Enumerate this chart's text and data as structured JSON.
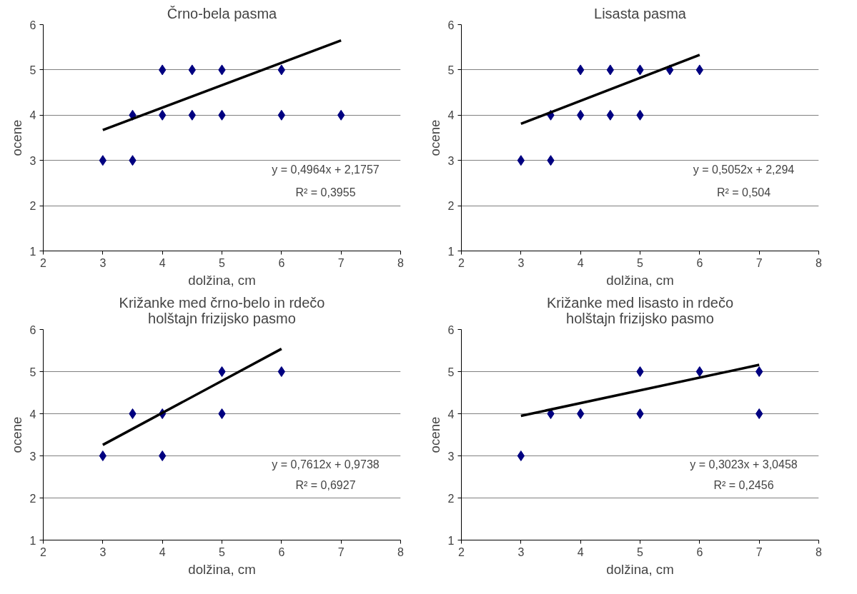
{
  "chart_data": [
    {
      "type": "scatter",
      "title": "Črno-bela pasma",
      "xlabel": "dolžina, cm",
      "ylabel": "ocene",
      "xlim": [
        2,
        8
      ],
      "ylim": [
        1,
        6
      ],
      "xticks": [
        2,
        3,
        4,
        5,
        6,
        7,
        8
      ],
      "yticks": [
        1,
        2,
        3,
        4,
        5,
        6
      ],
      "grid": "y",
      "marker": "diamond",
      "annotations": [
        "y = 0,4964x + 2,1757",
        "R² = 0,3955"
      ],
      "series": [
        {
          "color": "#000080",
          "x": [
            3,
            3.5,
            3.5,
            4,
            4,
            4.5,
            4.5,
            5,
            5,
            6,
            6,
            7
          ],
          "values": [
            3,
            3,
            4,
            4,
            5,
            4,
            5,
            4,
            5,
            4,
            5,
            4
          ]
        },
        {
          "type": "line",
          "color": "#000000",
          "marker": "none",
          "x": [
            3,
            7
          ],
          "values": [
            3.67,
            5.65
          ]
        }
      ]
    },
    {
      "type": "scatter",
      "title": "Lisasta pasma",
      "xlabel": "dolžina, cm",
      "ylabel": "ocene",
      "xlim": [
        2,
        8
      ],
      "ylim": [
        1,
        6
      ],
      "xticks": [
        2,
        3,
        4,
        5,
        6,
        7,
        8
      ],
      "yticks": [
        1,
        2,
        3,
        4,
        5,
        6
      ],
      "grid": "y",
      "marker": "diamond",
      "annotations": [
        "y = 0,5052x + 2,294",
        "R² = 0,504"
      ],
      "series": [
        {
          "color": "#000080",
          "x": [
            3,
            3.5,
            3.5,
            4,
            4,
            4.5,
            4.5,
            5,
            5,
            5.5,
            6
          ],
          "values": [
            3,
            3,
            4,
            4,
            5,
            4,
            5,
            4,
            5,
            5,
            5
          ]
        },
        {
          "type": "line",
          "color": "#000000",
          "marker": "none",
          "x": [
            3,
            6
          ],
          "values": [
            3.81,
            5.33
          ]
        }
      ]
    },
    {
      "type": "scatter",
      "title": "Križanke med črno-belo in rdečo holštajn frizijsko pasmo",
      "xlabel": "dolžina, cm",
      "ylabel": "ocene",
      "xlim": [
        2,
        8
      ],
      "ylim": [
        1,
        6
      ],
      "xticks": [
        2,
        3,
        4,
        5,
        6,
        7,
        8
      ],
      "yticks": [
        1,
        2,
        3,
        4,
        5,
        6
      ],
      "grid": "y",
      "marker": "diamond",
      "annotations": [
        "y = 0,7612x + 0,9738",
        "R² = 0,6927"
      ],
      "series": [
        {
          "color": "#000080",
          "x": [
            3,
            3.5,
            4,
            4,
            5,
            5,
            6
          ],
          "values": [
            3,
            4,
            3,
            4,
            4,
            5,
            5
          ]
        },
        {
          "type": "line",
          "color": "#000000",
          "marker": "none",
          "x": [
            3,
            6
          ],
          "values": [
            3.26,
            5.54
          ]
        }
      ]
    },
    {
      "type": "scatter",
      "title": "Križanke med lisasto in rdečo holštajn frizijsko pasmo",
      "xlabel": "dolžina, cm",
      "ylabel": "ocene",
      "xlim": [
        2,
        8
      ],
      "ylim": [
        1,
        6
      ],
      "xticks": [
        2,
        3,
        4,
        5,
        6,
        7,
        8
      ],
      "yticks": [
        1,
        2,
        3,
        4,
        5,
        6
      ],
      "grid": "y",
      "marker": "diamond",
      "annotations": [
        "y = 0,3023x + 3,0458",
        "R² = 0,2456"
      ],
      "series": [
        {
          "color": "#000080",
          "x": [
            3,
            3.5,
            4,
            5,
            5,
            6,
            7,
            7
          ],
          "values": [
            3,
            4,
            4,
            4,
            5,
            5,
            4,
            5
          ]
        },
        {
          "type": "line",
          "color": "#000000",
          "marker": "none",
          "x": [
            3,
            7
          ],
          "values": [
            3.95,
            5.16
          ]
        }
      ]
    }
  ]
}
